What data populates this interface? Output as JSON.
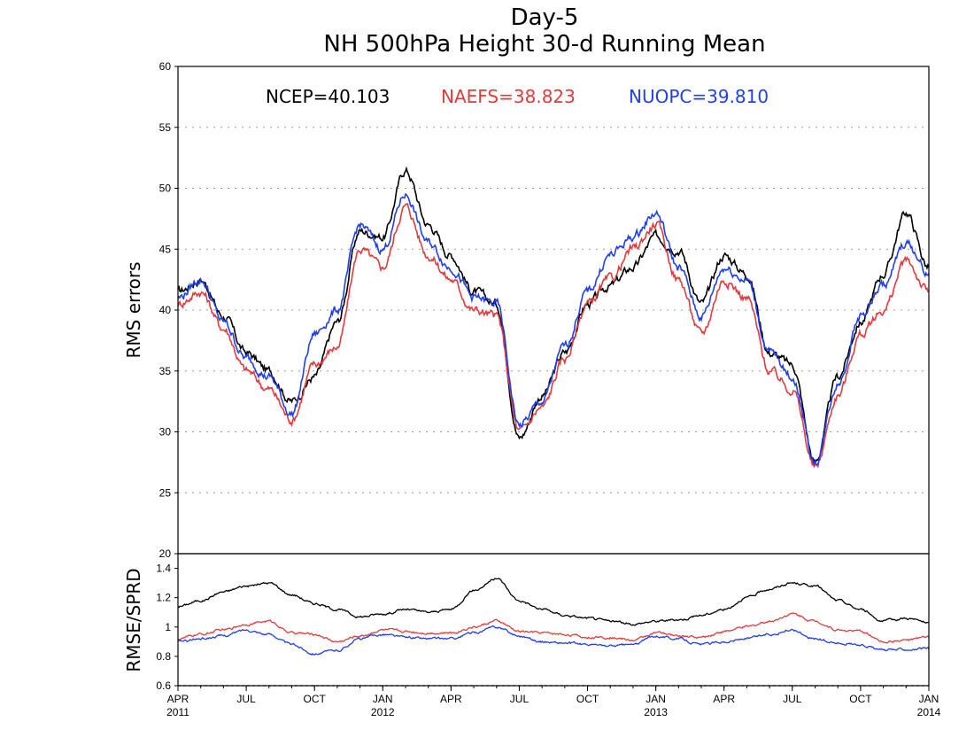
{
  "chart_data": [
    {
      "type": "line",
      "title": "Day-5",
      "subtitle": "NH 500hPa Height 30-d Running Mean",
      "ylabel": "RMS errors",
      "ylim": [
        20,
        60
      ],
      "yticks": [
        "20",
        "25",
        "30",
        "35",
        "40",
        "45",
        "50",
        "55",
        "60"
      ],
      "grid": true,
      "legend_placement": "top",
      "legend": [
        "NCEP=40.103",
        "NAEFS=38.823",
        "NUOPC=39.810"
      ],
      "x": [
        "2011-04",
        "2011-05",
        "2011-06",
        "2011-07",
        "2011-08",
        "2011-09",
        "2011-10",
        "2011-11",
        "2011-12",
        "2012-01",
        "2012-02",
        "2012-03",
        "2012-04",
        "2012-05",
        "2012-06",
        "2012-07",
        "2012-08",
        "2012-09",
        "2012-10",
        "2012-11",
        "2012-12",
        "2013-01",
        "2013-02",
        "2013-03",
        "2013-04",
        "2013-05",
        "2013-06",
        "2013-07",
        "2013-08",
        "2013-09",
        "2013-10",
        "2013-11",
        "2013-12",
        "2014-01"
      ],
      "series": [
        {
          "name": "NCEP",
          "color": "#000000",
          "values": [
            41.5,
            42.5,
            39.5,
            36.5,
            35.0,
            32.5,
            34.5,
            39.0,
            46.5,
            46.0,
            51.5,
            47.0,
            44.5,
            41.5,
            40.5,
            29.5,
            33.0,
            36.5,
            40.5,
            42.0,
            43.5,
            46.0,
            45.0,
            40.5,
            44.5,
            43.0,
            36.5,
            35.5,
            27.5,
            34.5,
            39.0,
            43.0,
            48.0,
            43.5
          ]
        },
        {
          "name": "NAEFS",
          "color": "#e03c3c",
          "values": [
            40.5,
            41.5,
            38.5,
            35.0,
            33.5,
            31.0,
            35.5,
            37.0,
            45.0,
            43.5,
            48.5,
            44.5,
            42.5,
            40.0,
            39.5,
            30.0,
            32.0,
            36.0,
            40.5,
            42.5,
            45.0,
            47.0,
            42.5,
            38.0,
            42.5,
            41.0,
            35.0,
            33.5,
            27.0,
            33.0,
            38.0,
            40.0,
            44.0,
            41.5
          ]
        },
        {
          "name": "NUOPC",
          "color": "#1f3ff0",
          "values": [
            41.0,
            42.5,
            39.0,
            36.0,
            34.5,
            31.5,
            38.0,
            40.0,
            47.0,
            45.0,
            49.5,
            45.5,
            43.5,
            41.0,
            40.5,
            30.5,
            32.5,
            37.0,
            41.5,
            44.5,
            46.0,
            48.0,
            43.5,
            39.5,
            43.5,
            42.5,
            36.5,
            34.5,
            27.5,
            34.0,
            39.5,
            42.0,
            45.5,
            43.0
          ]
        }
      ]
    },
    {
      "type": "line",
      "ylabel": "RMSE/SPRD",
      "ylim": [
        0.6,
        1.5
      ],
      "yticks": [
        "0.6",
        "0.8",
        "1",
        "1.2",
        "1.4"
      ],
      "grid": false,
      "xticks": [
        {
          "label": "APR",
          "year": "2011"
        },
        {
          "label": "JUL",
          "year": ""
        },
        {
          "label": "OCT",
          "year": ""
        },
        {
          "label": "JAN",
          "year": "2012"
        },
        {
          "label": "APR",
          "year": ""
        },
        {
          "label": "JUL",
          "year": ""
        },
        {
          "label": "OCT",
          "year": ""
        },
        {
          "label": "JAN",
          "year": "2013"
        },
        {
          "label": "APR",
          "year": ""
        },
        {
          "label": "JUL",
          "year": ""
        },
        {
          "label": "OCT",
          "year": ""
        },
        {
          "label": "JAN",
          "year": "2014"
        }
      ],
      "x": [
        "2011-04",
        "2011-05",
        "2011-06",
        "2011-07",
        "2011-08",
        "2011-09",
        "2011-10",
        "2011-11",
        "2011-12",
        "2012-01",
        "2012-02",
        "2012-03",
        "2012-04",
        "2012-05",
        "2012-06",
        "2012-07",
        "2012-08",
        "2012-09",
        "2012-10",
        "2012-11",
        "2012-12",
        "2013-01",
        "2013-02",
        "2013-03",
        "2013-04",
        "2013-05",
        "2013-06",
        "2013-07",
        "2013-08",
        "2013-09",
        "2013-10",
        "2013-11",
        "2013-12",
        "2014-01"
      ],
      "series": [
        {
          "name": "NCEP",
          "color": "#000000",
          "values": [
            1.14,
            1.18,
            1.24,
            1.28,
            1.3,
            1.22,
            1.16,
            1.12,
            1.07,
            1.09,
            1.12,
            1.1,
            1.12,
            1.25,
            1.33,
            1.18,
            1.12,
            1.08,
            1.06,
            1.04,
            1.02,
            1.04,
            1.05,
            1.08,
            1.12,
            1.2,
            1.26,
            1.3,
            1.28,
            1.18,
            1.12,
            1.04,
            1.06,
            1.03
          ]
        },
        {
          "name": "NAEFS",
          "color": "#e03c3c",
          "values": [
            0.92,
            0.95,
            0.98,
            1.02,
            1.04,
            0.96,
            0.95,
            0.9,
            0.94,
            0.98,
            0.97,
            0.96,
            0.96,
            1.0,
            1.04,
            0.97,
            0.96,
            0.95,
            0.93,
            0.93,
            0.91,
            0.96,
            0.94,
            0.93,
            0.97,
            1.0,
            1.04,
            1.09,
            1.04,
            0.98,
            0.97,
            0.9,
            0.91,
            0.93
          ]
        },
        {
          "name": "NUOPC",
          "color": "#1f3ff0",
          "values": [
            0.9,
            0.92,
            0.94,
            0.98,
            0.95,
            0.88,
            0.82,
            0.84,
            0.92,
            0.95,
            0.93,
            0.92,
            0.92,
            0.96,
            1.0,
            0.94,
            0.9,
            0.89,
            0.88,
            0.87,
            0.88,
            0.94,
            0.92,
            0.88,
            0.9,
            0.92,
            0.95,
            0.98,
            0.92,
            0.89,
            0.88,
            0.84,
            0.85,
            0.85
          ]
        }
      ]
    }
  ]
}
